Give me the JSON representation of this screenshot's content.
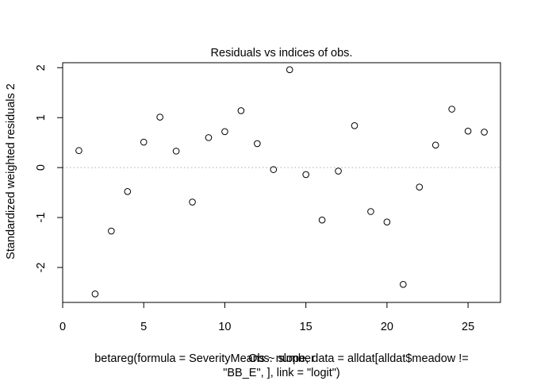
{
  "chart_data": {
    "type": "scatter",
    "title": "Residuals vs indices of obs.",
    "xlabel": "Obs. number",
    "ylabel": "Standardized weighted residuals 2",
    "subtitle_lines": [
      "betareg(formula = SeverityMeans ~ slope, data = alldat[alldat$meadow !=",
      "\"BB_E\", ], link = \"logit\")"
    ],
    "xlim": [
      0,
      27
    ],
    "ylim": [
      -2.7,
      2.1
    ],
    "x_ticks": [
      0,
      5,
      10,
      15,
      20,
      25
    ],
    "y_ticks": [
      -2,
      -1,
      0,
      1,
      2
    ],
    "reference_line_y": 0,
    "points": [
      {
        "x": 1,
        "y": 0.34
      },
      {
        "x": 2,
        "y": -2.53
      },
      {
        "x": 3,
        "y": -1.27
      },
      {
        "x": 4,
        "y": -0.48
      },
      {
        "x": 5,
        "y": 0.51
      },
      {
        "x": 6,
        "y": 1.01
      },
      {
        "x": 7,
        "y": 0.33
      },
      {
        "x": 8,
        "y": -0.69
      },
      {
        "x": 9,
        "y": 0.6
      },
      {
        "x": 10,
        "y": 0.72
      },
      {
        "x": 11,
        "y": 1.14
      },
      {
        "x": 12,
        "y": 0.48
      },
      {
        "x": 13,
        "y": -0.04
      },
      {
        "x": 14,
        "y": 1.96
      },
      {
        "x": 15,
        "y": -0.14
      },
      {
        "x": 16,
        "y": -1.05
      },
      {
        "x": 17,
        "y": -0.07
      },
      {
        "x": 18,
        "y": 0.84
      },
      {
        "x": 19,
        "y": -0.88
      },
      {
        "x": 20,
        "y": -1.09
      },
      {
        "x": 21,
        "y": -2.34
      },
      {
        "x": 22,
        "y": -0.39
      },
      {
        "x": 23,
        "y": 0.45
      },
      {
        "x": 24,
        "y": 1.17
      },
      {
        "x": 25,
        "y": 0.73
      },
      {
        "x": 26,
        "y": 0.71
      }
    ]
  }
}
